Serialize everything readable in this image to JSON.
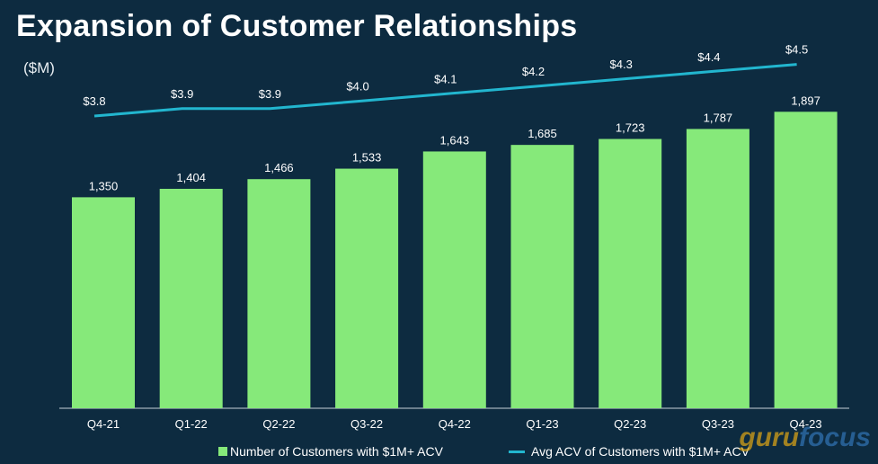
{
  "page": {
    "title": "Expansion of Customer Relationships",
    "unit_label": "($M)"
  },
  "legend": {
    "bar_label": "Number of Customers with $1M+ ACV",
    "line_label": "Avg ACV of Customers with $1M+ ACV"
  },
  "watermark": {
    "part1": "guru",
    "part2": "focus"
  },
  "colors": {
    "background": "#0d2b40",
    "bar": "#86e97a",
    "line": "#22b6cf",
    "axis": "#c8d2d8"
  },
  "chart_data": {
    "type": "bar",
    "title": "Expansion of Customer Relationships",
    "categories": [
      "Q4-21",
      "Q1-22",
      "Q2-22",
      "Q3-22",
      "Q4-22",
      "Q1-23",
      "Q2-23",
      "Q3-23",
      "Q4-23"
    ],
    "series": [
      {
        "name": "Number of Customers with $1M+ ACV",
        "type": "bar",
        "values": [
          1350,
          1404,
          1466,
          1533,
          1643,
          1685,
          1723,
          1787,
          1897
        ],
        "labels": [
          "1,350",
          "1,404",
          "1,466",
          "1,533",
          "1,643",
          "1,685",
          "1,723",
          "1,787",
          "1,897"
        ]
      },
      {
        "name": "Avg ACV of Customers with $1M+ ACV",
        "type": "line",
        "values": [
          3.8,
          3.9,
          3.9,
          4.0,
          4.1,
          4.2,
          4.3,
          4.4,
          4.5
        ],
        "labels": [
          "$3.8",
          "$3.9",
          "$3.9",
          "$4.0",
          "$4.1",
          "$4.2",
          "$4.3",
          "$4.4",
          "$4.5"
        ]
      }
    ],
    "ylabel": "($M)",
    "legend_position": "bottom"
  }
}
